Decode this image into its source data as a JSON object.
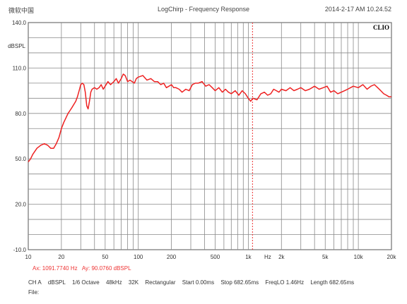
{
  "header": {
    "software": "微软中国",
    "title": "LogChirp - Frequency Response",
    "timestamp": "2014-2-17 AM 10.24.52"
  },
  "brand_logo": "CLIO",
  "chart_data": {
    "type": "line",
    "title": "LogChirp - Frequency Response",
    "ylabel": "dBSPL",
    "xlabel": "Hz",
    "x_scale": "log",
    "xlim": [
      10,
      20000
    ],
    "ylim": [
      -10,
      140
    ],
    "grid": true,
    "y_ticks": [
      "140.0",
      "110.0",
      "80.0",
      "50.0",
      "20.0",
      "-10.0"
    ],
    "y_tick_values": [
      140,
      110,
      80,
      50,
      20,
      -10
    ],
    "x_ticks": [
      {
        "v": 10,
        "label": "10"
      },
      {
        "v": 20,
        "label": "20"
      },
      {
        "v": 50,
        "label": "50"
      },
      {
        "v": 100,
        "label": "100"
      },
      {
        "v": 200,
        "label": "200"
      },
      {
        "v": 500,
        "label": "500"
      },
      {
        "v": 1000,
        "label": "1k"
      },
      {
        "v": 1500,
        "label": "Hz"
      },
      {
        "v": 2000,
        "label": "2k"
      },
      {
        "v": 5000,
        "label": "5k"
      },
      {
        "v": 10000,
        "label": "10k"
      },
      {
        "v": 20000,
        "label": "20k"
      }
    ],
    "cursor_x": 1091.774,
    "series": [
      {
        "color": "#ee2222",
        "x": [
          10,
          10.5,
          11,
          12,
          13,
          14,
          15,
          16,
          17,
          18,
          19,
          20,
          21,
          22,
          23,
          24,
          25,
          26,
          27,
          28,
          29,
          30,
          31,
          32,
          33,
          34,
          35,
          36,
          37,
          38,
          40,
          42,
          44,
          46,
          48,
          50,
          53,
          56,
          60,
          63,
          66,
          70,
          73,
          76,
          80,
          84,
          88,
          92,
          96,
          100,
          110,
          120,
          130,
          140,
          150,
          160,
          170,
          180,
          190,
          200,
          210,
          220,
          235,
          250,
          270,
          290,
          310,
          330,
          350,
          380,
          410,
          440,
          470,
          500,
          540,
          580,
          620,
          660,
          700,
          760,
          820,
          880,
          940,
          1000,
          1050,
          1100,
          1200,
          1300,
          1400,
          1500,
          1600,
          1700,
          1800,
          1900,
          2000,
          2200,
          2400,
          2600,
          2800,
          3000,
          3300,
          3600,
          4000,
          4400,
          4800,
          5200,
          5600,
          6000,
          6500,
          7000,
          7500,
          8000,
          8500,
          9000,
          10000,
          11000,
          12000,
          13000,
          14000,
          15000,
          16000,
          17000,
          18000,
          19000,
          20000
        ],
        "y": [
          48,
          50,
          53,
          57,
          59,
          60,
          59,
          57,
          57,
          60,
          64,
          70,
          74,
          77,
          80,
          82,
          84,
          86,
          88,
          91,
          95,
          99,
          100,
          99,
          94,
          85,
          83,
          88,
          94,
          96,
          97,
          96,
          97,
          99,
          96,
          98,
          101,
          99,
          101,
          103,
          100,
          103,
          106,
          105,
          101,
          102,
          101,
          100,
          103,
          104,
          105,
          102,
          103,
          101,
          101,
          99,
          100,
          97,
          98,
          99,
          97,
          97,
          96,
          94,
          96,
          95,
          99,
          100,
          100,
          101,
          98,
          99,
          97,
          95,
          97,
          94,
          96,
          94,
          93,
          95,
          92,
          95,
          93,
          90,
          88,
          90,
          89,
          93,
          94,
          92,
          93,
          96,
          95,
          94,
          96,
          95,
          97,
          95,
          96,
          97,
          95,
          96,
          98,
          96,
          97,
          98,
          94,
          95,
          93,
          94,
          95,
          96,
          97,
          98,
          97,
          99,
          96,
          98,
          99,
          97,
          95,
          93,
          92,
          91,
          91
        ]
      }
    ]
  },
  "cursor_readout": {
    "ax": "Ax: 1091.7740 Hz",
    "ay": "Ay: 90.0760 dBSPL"
  },
  "status": {
    "channel": "CH A",
    "unit": "dBSPL",
    "smoothing": "1/6 Octave",
    "rate": "48kHz",
    "size": "32K",
    "window": "Rectangular",
    "start": "Start 0.00ms",
    "stop": "Stop 682.65ms",
    "freqlo": "FreqLO 1.46Hz",
    "length": "Length 682.65ms"
  },
  "file_label": "File:"
}
